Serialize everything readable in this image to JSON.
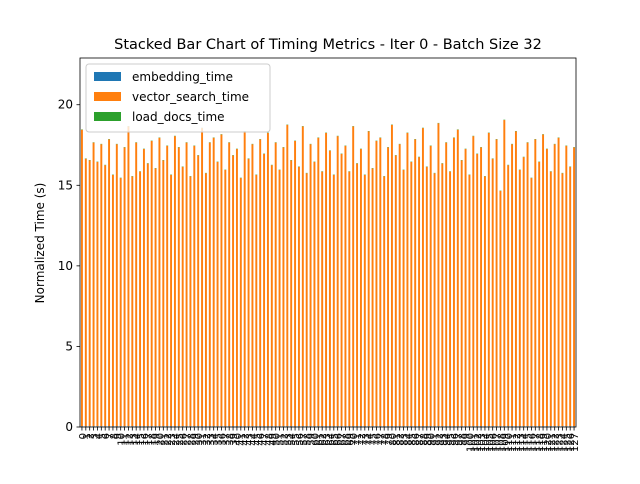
{
  "chart_data": {
    "type": "stacked_bar",
    "title": "Stacked Bar Chart of Timing Metrics - Iter 0 - Batch Size 32",
    "ylabel": "Normalized Time (s)",
    "categories": [
      "0",
      "1",
      "2",
      "3",
      "4",
      "5",
      "6",
      "7",
      "8",
      "9",
      "10",
      "11",
      "12",
      "13",
      "14",
      "15",
      "16",
      "17",
      "18",
      "19",
      "20",
      "21",
      "22",
      "23",
      "24",
      "25",
      "26",
      "27",
      "28",
      "29",
      "30",
      "31",
      "32",
      "33",
      "34",
      "35",
      "36",
      "37",
      "38",
      "39",
      "40",
      "41",
      "42",
      "43",
      "44",
      "45",
      "46",
      "47",
      "48",
      "49",
      "50",
      "51",
      "52",
      "53",
      "54",
      "55",
      "56",
      "57",
      "58",
      "59",
      "60",
      "61",
      "62",
      "63",
      "64",
      "65",
      "66",
      "67",
      "68",
      "69",
      "70",
      "71",
      "72",
      "73",
      "74",
      "75",
      "76",
      "77",
      "78",
      "79",
      "80",
      "81",
      "82",
      "83",
      "84",
      "85",
      "86",
      "87",
      "88",
      "89",
      "90",
      "91",
      "92",
      "93",
      "94",
      "95",
      "96",
      "97",
      "98",
      "99",
      "100",
      "101",
      "102",
      "103",
      "104",
      "105",
      "106",
      "107",
      "108",
      "109",
      "110",
      "111",
      "112",
      "113",
      "114",
      "115",
      "116",
      "117",
      "118",
      "119",
      "120",
      "121",
      "122",
      "123",
      "124",
      "125",
      "126",
      "127"
    ],
    "series": [
      {
        "name": "embedding_time",
        "color": "#1f77b4",
        "values": [
          0.05,
          0.05,
          0.05,
          0.05,
          0.05,
          0.05,
          0.05,
          0.05,
          0.05,
          0.05,
          0.05,
          0.05,
          0.05,
          0.05,
          0.05,
          0.05,
          0.05,
          0.05,
          0.05,
          0.05,
          0.05,
          0.05,
          0.05,
          0.05,
          0.05,
          0.05,
          0.05,
          0.05,
          0.05,
          0.05,
          0.05,
          0.05,
          0.05,
          0.05,
          0.05,
          0.05,
          0.05,
          0.05,
          0.05,
          0.05,
          0.05,
          0.05,
          0.05,
          0.05,
          0.05,
          0.05,
          0.05,
          0.05,
          0.05,
          0.05,
          0.05,
          0.05,
          0.05,
          0.05,
          0.05,
          0.05,
          0.05,
          0.05,
          0.05,
          0.05,
          0.05,
          0.05,
          0.05,
          0.05,
          0.05,
          0.05,
          0.05,
          0.05,
          0.05,
          0.05,
          0.05,
          0.05,
          0.05,
          0.05,
          0.05,
          0.05,
          0.05,
          0.05,
          0.05,
          0.05,
          0.05,
          0.05,
          0.05,
          0.05,
          0.05,
          0.05,
          0.05,
          0.05,
          0.05,
          0.05,
          0.05,
          0.05,
          0.05,
          0.05,
          0.05,
          0.05,
          0.05,
          0.05,
          0.05,
          0.05,
          0.05,
          0.05,
          0.05,
          0.05,
          0.05,
          0.05,
          0.05,
          0.05,
          0.05,
          0.05,
          0.05,
          0.05,
          0.05,
          0.05,
          0.05,
          0.05,
          0.05,
          0.05,
          0.05,
          0.05,
          0.05,
          0.05,
          0.05,
          0.05,
          0.05,
          0.05,
          0.05,
          0.05
        ]
      },
      {
        "name": "vector_search_time",
        "color": "#ff7f0e",
        "values": [
          18.4,
          16.6,
          16.5,
          17.6,
          16.4,
          17.5,
          16.2,
          17.8,
          15.6,
          17.5,
          15.4,
          17.3,
          18.6,
          15.5,
          17.6,
          15.8,
          17.2,
          16.3,
          17.7,
          16.0,
          17.9,
          16.5,
          17.4,
          15.6,
          18.0,
          17.3,
          16.1,
          17.6,
          15.5,
          17.4,
          16.8,
          18.5,
          15.7,
          17.6,
          17.9,
          16.4,
          18.1,
          15.9,
          17.6,
          16.8,
          17.2,
          15.4,
          18.3,
          16.6,
          17.5,
          15.6,
          17.8,
          16.9,
          18.2,
          16.2,
          17.6,
          15.9,
          17.3,
          18.7,
          16.5,
          17.7,
          16.1,
          18.6,
          15.7,
          17.5,
          16.4,
          17.9,
          15.8,
          18.2,
          17.1,
          15.6,
          18.0,
          16.9,
          17.4,
          15.8,
          18.6,
          16.3,
          17.2,
          15.6,
          18.3,
          16.0,
          17.7,
          17.9,
          15.5,
          17.3,
          18.7,
          16.8,
          17.5,
          15.9,
          18.2,
          16.4,
          17.8,
          16.7,
          18.5,
          16.1,
          17.4,
          15.7,
          18.8,
          16.3,
          17.6,
          15.8,
          17.9,
          18.4,
          16.5,
          17.2,
          15.6,
          18.0,
          16.9,
          17.3,
          15.5,
          18.2,
          16.6,
          17.8,
          14.6,
          19.0,
          16.2,
          17.5,
          18.3,
          15.9,
          16.7,
          17.6,
          15.4,
          17.8,
          16.4,
          18.1,
          17.2,
          15.8,
          17.5,
          17.9,
          15.7,
          17.4,
          16.1,
          17.3
        ]
      },
      {
        "name": "load_docs_time",
        "color": "#2ca02c",
        "values": [
          0.02,
          0.02,
          0.02,
          0.02,
          0.02,
          0.02,
          0.02,
          0.02,
          0.02,
          0.02,
          0.02,
          0.02,
          0.02,
          0.02,
          0.02,
          0.02,
          0.02,
          0.02,
          0.02,
          0.02,
          0.02,
          0.02,
          0.02,
          0.02,
          0.02,
          0.02,
          0.02,
          0.02,
          0.02,
          0.02,
          0.02,
          0.02,
          0.02,
          0.02,
          0.02,
          0.02,
          0.02,
          0.02,
          0.02,
          0.02,
          0.02,
          0.02,
          0.02,
          0.02,
          0.02,
          0.02,
          0.02,
          0.02,
          0.02,
          0.02,
          0.02,
          0.02,
          0.02,
          0.02,
          0.02,
          0.02,
          0.02,
          0.02,
          0.02,
          0.02,
          0.02,
          0.02,
          0.02,
          0.02,
          0.02,
          0.02,
          0.02,
          0.02,
          0.02,
          0.02,
          0.02,
          0.02,
          0.02,
          0.02,
          0.02,
          0.02,
          0.02,
          0.02,
          0.02,
          0.02,
          0.02,
          0.02,
          0.02,
          0.02,
          0.02,
          0.02,
          0.02,
          0.02,
          0.02,
          0.02,
          0.02,
          0.02,
          0.02,
          0.02,
          0.02,
          0.02,
          0.02,
          0.02,
          0.02,
          0.02,
          0.02,
          0.02,
          0.02,
          0.02,
          0.02,
          0.02,
          0.02,
          0.02,
          0.02,
          0.02,
          0.02,
          0.02,
          0.02,
          0.02,
          0.02,
          0.02,
          0.02,
          0.02,
          0.02,
          0.02,
          0.02,
          0.02,
          0.02,
          0.02,
          0.02,
          0.02,
          0.02,
          0.02
        ]
      }
    ],
    "ylim": [
      0,
      22.9
    ],
    "yticks": [
      0,
      5,
      10,
      15,
      20
    ],
    "legend": "upper left"
  }
}
